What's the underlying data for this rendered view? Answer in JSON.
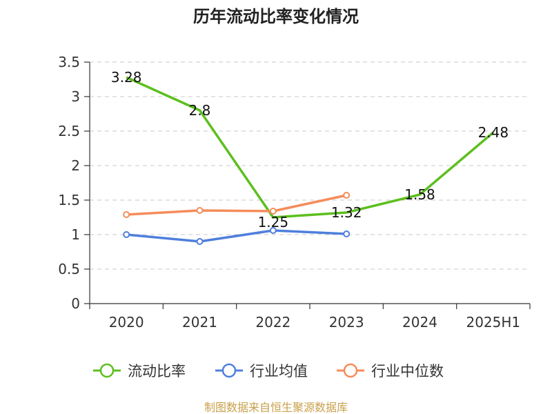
{
  "title": "历年流动比率变化情况",
  "footer": "制图数据来自恒生聚源数据库",
  "chart_data": {
    "type": "line",
    "title": "历年流动比率变化情况",
    "categories": [
      "2020",
      "2021",
      "2022",
      "2023",
      "2024",
      "2025H1"
    ],
    "y_ticks": [
      "0",
      "0.5",
      "1",
      "1.5",
      "2",
      "2.5",
      "3",
      "3.5"
    ],
    "ylim": [
      0,
      3.5
    ],
    "grid": "horizontal dashed",
    "legend_position": "bottom",
    "series": [
      {
        "name": "流动比率",
        "color": "#5cbf1e",
        "values": [
          3.28,
          2.8,
          1.25,
          1.32,
          1.58,
          2.48
        ],
        "labels": [
          "3.28",
          "2.8",
          "1.25",
          "1.32",
          "1.58",
          "2.48"
        ],
        "show_labels": true,
        "show_markers": false
      },
      {
        "name": "行业均值",
        "color": "#4f7fdc",
        "values": [
          1.0,
          0.9,
          1.06,
          1.01,
          null,
          null
        ],
        "show_labels": false,
        "show_markers": true
      },
      {
        "name": "行业中位数",
        "color": "#f58c5a",
        "values": [
          1.29,
          1.35,
          1.34,
          1.57,
          null,
          null
        ],
        "show_labels": false,
        "show_markers": true
      }
    ]
  }
}
